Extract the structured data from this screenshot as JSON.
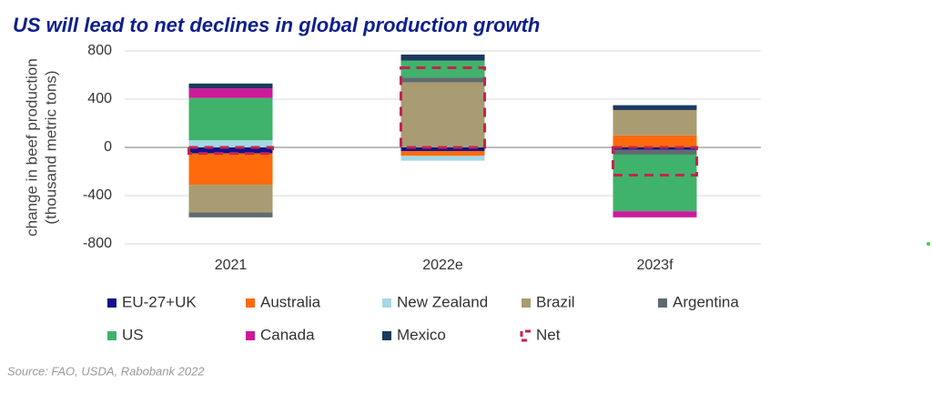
{
  "chart_data": {
    "type": "stacked-bar",
    "title": "US will lead to net declines in global production growth",
    "y_label": [
      "change in beef production",
      "(thousand metric tons)"
    ],
    "source": "Source: FAO, USDA, Rabobank 2022",
    "categories": [
      "2021",
      "2022e",
      "2023f"
    ],
    "ylim": [
      -800,
      800
    ],
    "yticks": [
      800,
      400,
      0,
      -400,
      -800
    ],
    "grid": true,
    "series": [
      {
        "name": "EU-27+UK",
        "color": "#12128a",
        "values": [
          -50,
          -30,
          -20
        ]
      },
      {
        "name": "Australia",
        "color": "#ff6a0d",
        "values": [
          -260,
          -40,
          100
        ]
      },
      {
        "name": "New Zealand",
        "color": "#a4d8e4",
        "values": [
          60,
          -40,
          0
        ]
      },
      {
        "name": "Brazil",
        "color": "#a99c72",
        "values": [
          -230,
          540,
          210
        ]
      },
      {
        "name": "Argentina",
        "color": "#5f6b70",
        "values": [
          -40,
          40,
          -40
        ]
      },
      {
        "name": "US",
        "color": "#3fb36b",
        "values": [
          350,
          140,
          -470
        ]
      },
      {
        "name": "Canada",
        "color": "#cc1a9a",
        "values": [
          80,
          0,
          -50
        ]
      },
      {
        "name": "Mexico",
        "color": "#1b3a5c",
        "values": [
          40,
          50,
          40
        ]
      }
    ],
    "net": {
      "name": "Net",
      "color": "#c3244f",
      "values": [
        -50,
        660,
        -230
      ]
    }
  }
}
